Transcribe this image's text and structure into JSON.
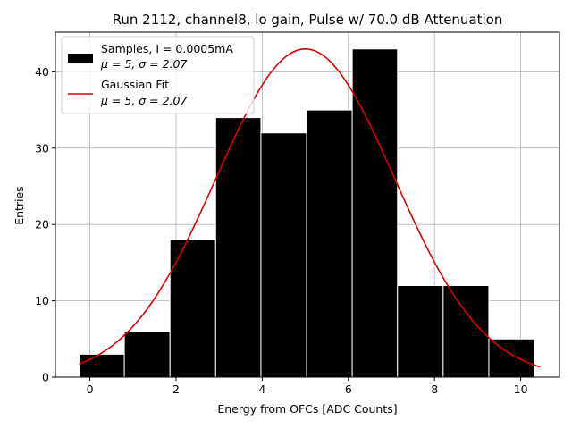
{
  "chart_data": {
    "type": "bar",
    "title": "Run 2112, channel8, lo gain, Pulse w/ 70.0 dB Attenuation",
    "xlabel": "Energy from OFCs [ADC Counts]",
    "ylabel": "Entries",
    "xlim": [
      -0.8,
      10.9
    ],
    "ylim": [
      0,
      45.2
    ],
    "xticks": [
      0,
      2,
      4,
      6,
      8,
      10
    ],
    "yticks": [
      0,
      10,
      20,
      30,
      40
    ],
    "grid": true,
    "legend_position": "top-left",
    "histogram": {
      "name": "Samples, I = 0.0005mA",
      "stats": "μ = 5, σ = 2.07",
      "color": "#000000",
      "edgecolor": "#ffffff",
      "bin_edges": [
        -0.25,
        0.8,
        1.86,
        2.92,
        3.97,
        5.03,
        6.09,
        7.14,
        8.2,
        9.26,
        10.31
      ],
      "values": [
        3,
        6,
        18,
        34,
        32,
        35,
        43,
        12,
        12,
        5
      ]
    },
    "fit": {
      "name": "Gaussian Fit",
      "stats": "μ = 5, σ = 2.07",
      "color": "#e00000",
      "mu": 5,
      "sigma": 2.07,
      "amplitude": 43,
      "x_range": [
        -0.25,
        10.45
      ]
    }
  }
}
